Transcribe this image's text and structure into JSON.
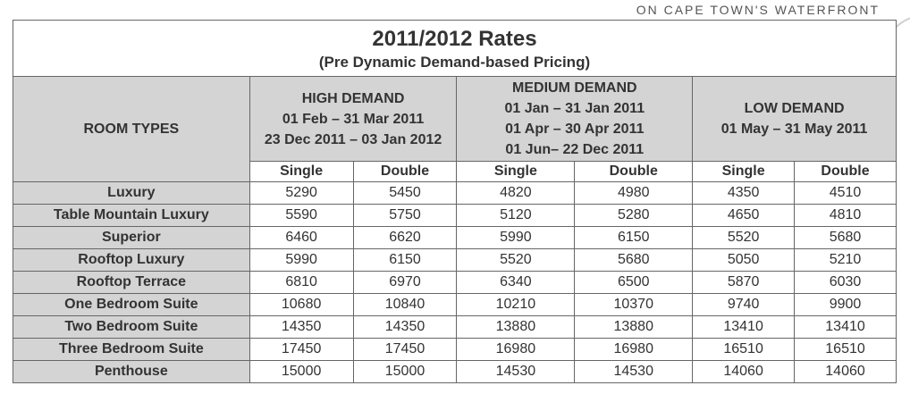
{
  "brand": "ON CAPE TOWN'S WATERFRONT",
  "title": "2011/2012 Rates",
  "subtitle": "(Pre Dynamic Demand-based Pricing)",
  "room_types_label": "ROOM TYPES",
  "seasons": [
    {
      "name": "HIGH DEMAND",
      "dates": [
        "01 Feb – 31 Mar 2011",
        "23 Dec 2011 – 03 Jan 2012"
      ]
    },
    {
      "name": "MEDIUM DEMAND",
      "dates": [
        "01 Jan – 31 Jan 2011",
        "01 Apr – 30 Apr 2011",
        "01 Jun– 22 Dec 2011"
      ]
    },
    {
      "name": "LOW DEMAND",
      "dates": [
        "01 May – 31 May 2011"
      ]
    }
  ],
  "subheaders": [
    "Single",
    "Double",
    "Single",
    "Double",
    "Single",
    "Double"
  ],
  "rows": [
    {
      "room": "Luxury",
      "values": [
        "5290",
        "5450",
        "4820",
        "4980",
        "4350",
        "4510"
      ]
    },
    {
      "room": "Table Mountain Luxury",
      "values": [
        "5590",
        "5750",
        "5120",
        "5280",
        "4650",
        "4810"
      ]
    },
    {
      "room": "Superior",
      "values": [
        "6460",
        "6620",
        "5990",
        "6150",
        "5520",
        "5680"
      ]
    },
    {
      "room": "Rooftop Luxury",
      "values": [
        "5990",
        "6150",
        "5520",
        "5680",
        "5050",
        "5210"
      ]
    },
    {
      "room": "Rooftop Terrace",
      "values": [
        "6810",
        "6970",
        "6340",
        "6500",
        "5870",
        "6030"
      ]
    },
    {
      "room": "One Bedroom Suite",
      "values": [
        "10680",
        "10840",
        "10210",
        "10370",
        "9740",
        "9900"
      ]
    },
    {
      "room": "Two Bedroom Suite",
      "values": [
        "14350",
        "14350",
        "13880",
        "13880",
        "13410",
        "13410"
      ]
    },
    {
      "room": "Three Bedroom Suite",
      "values": [
        "17450",
        "17450",
        "16980",
        "16980",
        "16510",
        "16510"
      ]
    },
    {
      "room": "Penthouse",
      "values": [
        "15000",
        "15000",
        "14530",
        "14530",
        "14060",
        "14060"
      ]
    }
  ]
}
